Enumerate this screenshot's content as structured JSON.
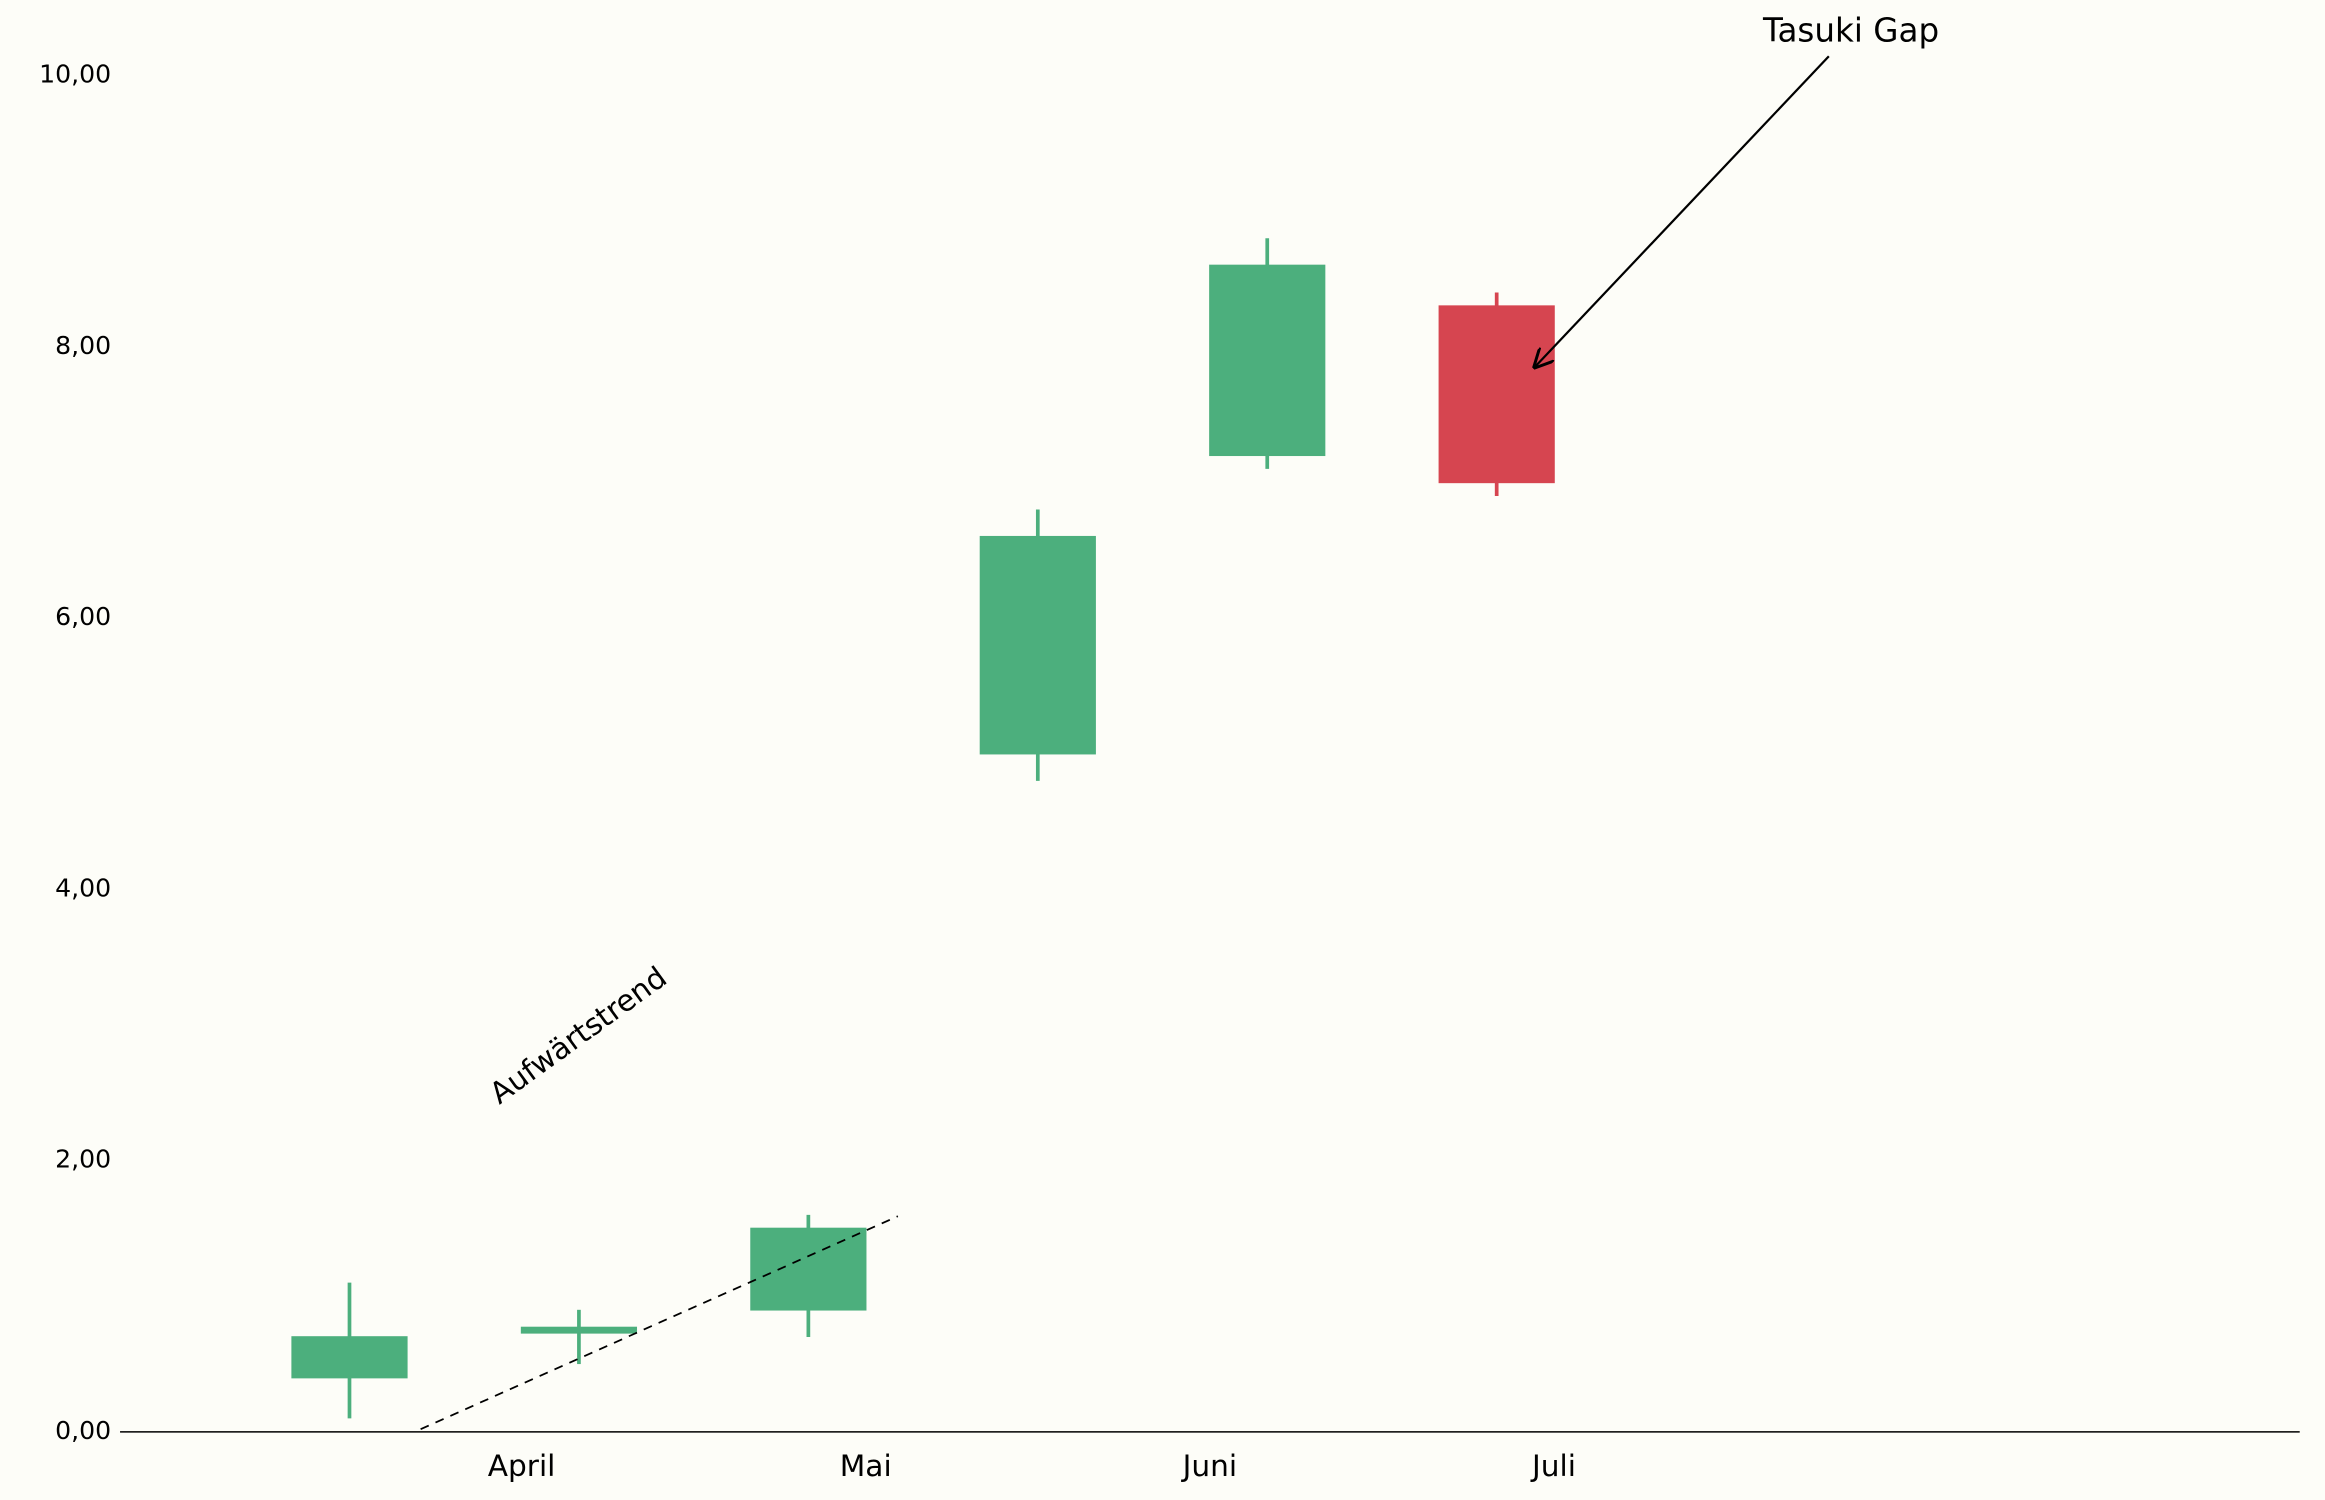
{
  "chart_data": {
    "type": "candlestick",
    "x": [
      0,
      1,
      2,
      3,
      4,
      5
    ],
    "open": [
      0.4,
      0.73,
      0.9,
      5.0,
      7.2,
      8.3
    ],
    "high": [
      1.1,
      0.9,
      1.6,
      6.8,
      8.8,
      8.4
    ],
    "low": [
      0.1,
      0.5,
      0.7,
      4.8,
      7.1,
      6.9
    ],
    "close": [
      0.7,
      0.77,
      1.5,
      6.6,
      8.6,
      7.0
    ],
    "up_color": "#4caf7d",
    "down_color": "#d64550",
    "xlim": [
      -1,
      8.5
    ],
    "xticks": [
      {
        "value": 0.75,
        "label": "April"
      },
      {
        "value": 2.25,
        "label": "Mai"
      },
      {
        "value": 3.75,
        "label": "Juni"
      },
      {
        "value": 5.25,
        "label": "Juli"
      }
    ],
    "ylim": [
      0,
      10
    ],
    "yticks": [
      {
        "value": 0,
        "label": "0,00"
      },
      {
        "value": 2,
        "label": "2,00"
      },
      {
        "value": 4,
        "label": "4,00"
      },
      {
        "value": 6,
        "label": "6,00"
      },
      {
        "value": 8,
        "label": "8,00"
      },
      {
        "value": 10,
        "label": "10,00"
      }
    ],
    "trend_line": {
      "text": "Aufwärtstrend",
      "x": [
        0.31,
        2.39
      ],
      "y": [
        0.02,
        1.59
      ]
    },
    "annotation": {
      "text": "Tasuki Gap",
      "xy": [
        5.16,
        7.84
      ]
    }
  }
}
